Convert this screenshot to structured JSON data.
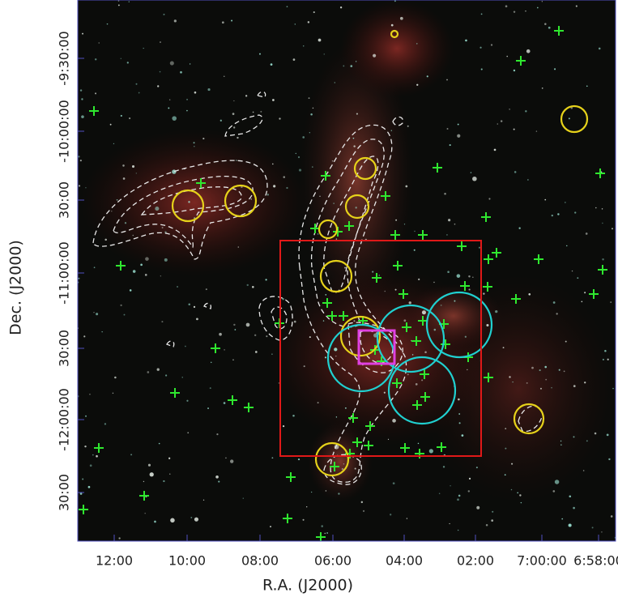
{
  "figure": {
    "x_axis": {
      "label": "R.A. (J2000)",
      "tick_labels": [
        "12:00",
        "10:00",
        "08:00",
        "06:00",
        "04:00",
        "02:00",
        "7:00:00",
        "6:58:00"
      ]
    },
    "y_axis": {
      "label": "Dec. (J2000)",
      "tick_labels": [
        "-9:30:00",
        "-10:00:00",
        "30:00",
        "-11:00:00",
        "30:00",
        "-12:00:00",
        "30:00"
      ]
    }
  }
}
